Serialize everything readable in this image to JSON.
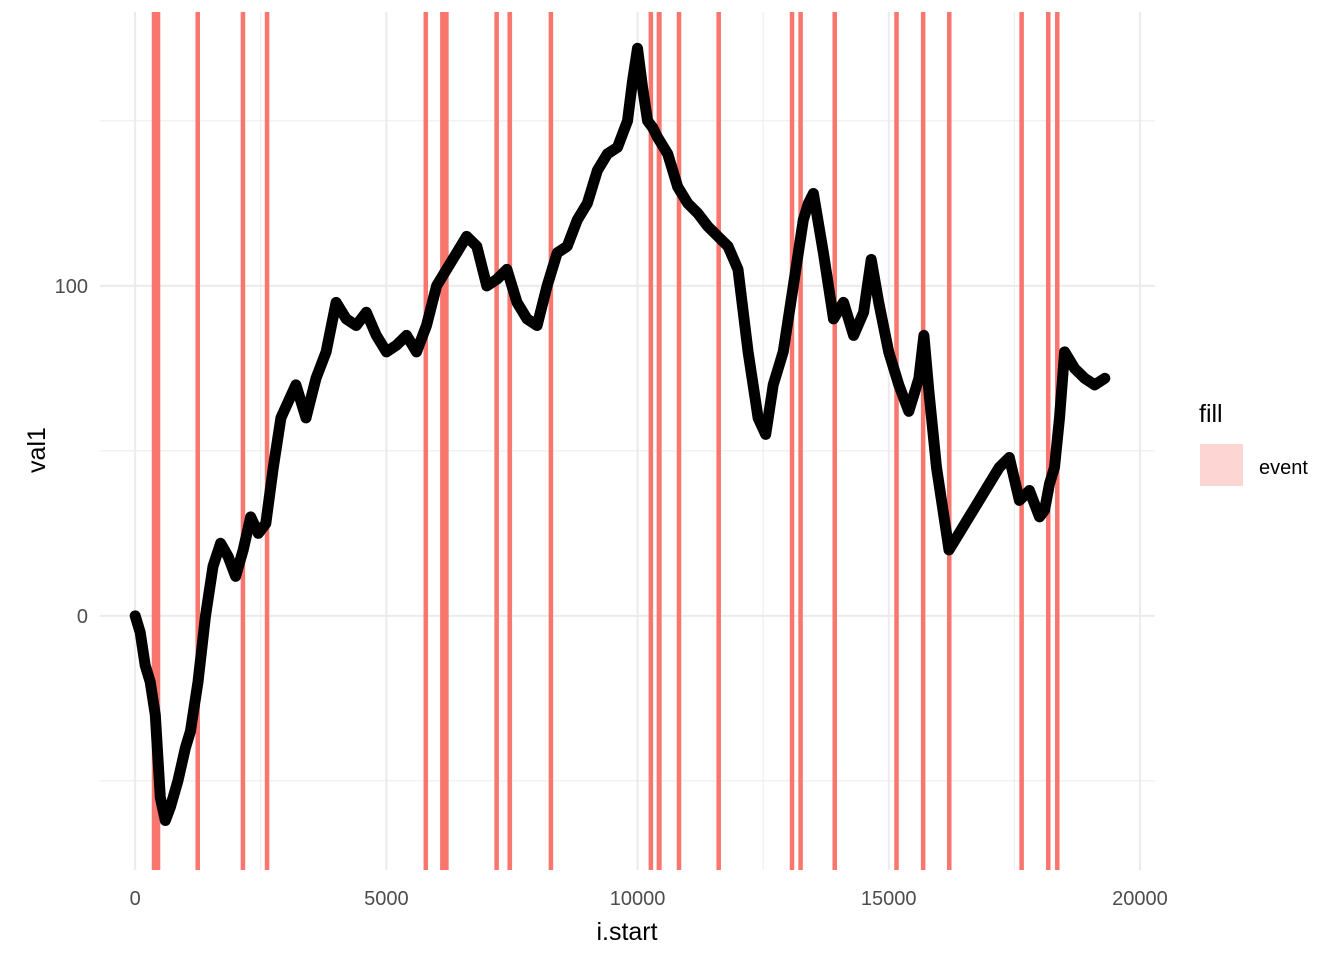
{
  "chart_data": {
    "type": "line",
    "title": "",
    "xlabel": "i.start",
    "ylabel": "val1",
    "xlim": [
      -700,
      20300
    ],
    "ylim": [
      -77,
      183
    ],
    "x_ticks": [
      0,
      5000,
      10000,
      15000,
      20000
    ],
    "x_tick_labels": [
      "0",
      "5000",
      "10000",
      "15000",
      "20000"
    ],
    "y_ticks": [
      0,
      100
    ],
    "y_tick_labels": [
      "0",
      "100"
    ],
    "grid": true,
    "legend": {
      "title": "fill",
      "position": "right",
      "entries": [
        {
          "label": "event",
          "color": "#F8766D"
        }
      ]
    },
    "colors": {
      "line": "#000000",
      "event": "#F8766D",
      "grid": "#ebebeb"
    },
    "events": [
      {
        "start": 330,
        "end": 500
      },
      {
        "start": 1200,
        "end": 1290
      },
      {
        "start": 2100,
        "end": 2190
      },
      {
        "start": 2580,
        "end": 2670
      },
      {
        "start": 5740,
        "end": 5830
      },
      {
        "start": 6070,
        "end": 6240
      },
      {
        "start": 7150,
        "end": 7240
      },
      {
        "start": 7410,
        "end": 7500
      },
      {
        "start": 8230,
        "end": 8320
      },
      {
        "start": 10220,
        "end": 10310
      },
      {
        "start": 10380,
        "end": 10480
      },
      {
        "start": 10780,
        "end": 10870
      },
      {
        "start": 11570,
        "end": 11660
      },
      {
        "start": 13030,
        "end": 13120
      },
      {
        "start": 13200,
        "end": 13290
      },
      {
        "start": 13880,
        "end": 13970
      },
      {
        "start": 15110,
        "end": 15200
      },
      {
        "start": 15640,
        "end": 15730
      },
      {
        "start": 16160,
        "end": 16250
      },
      {
        "start": 17600,
        "end": 17690
      },
      {
        "start": 18130,
        "end": 18220
      },
      {
        "start": 18310,
        "end": 18400
      }
    ],
    "series": [
      {
        "x": [
          0,
          100,
          200,
          300,
          400,
          500,
          600,
          700,
          850,
          1000,
          1100,
          1250,
          1400,
          1550,
          1700,
          1850,
          2000,
          2150,
          2300,
          2450,
          2600,
          2750,
          2900,
          3050,
          3200,
          3400,
          3600,
          3800,
          4000,
          4200,
          4400,
          4600,
          4800,
          5000,
          5200,
          5400,
          5600,
          5800,
          6000,
          6200,
          6400,
          6600,
          6800,
          7000,
          7200,
          7400,
          7600,
          7800,
          8000,
          8200,
          8400,
          8600,
          8800,
          9000,
          9200,
          9400,
          9600,
          9800,
          9900,
          10000,
          10100,
          10200,
          10300,
          10400,
          10600,
          10800,
          11000,
          11200,
          11400,
          11600,
          11800,
          12000,
          12200,
          12400,
          12550,
          12700,
          12900,
          13100,
          13300,
          13400,
          13500,
          13700,
          13900,
          14100,
          14300,
          14500,
          14650,
          14800,
          15000,
          15200,
          15400,
          15600,
          15700,
          15800,
          15950,
          16100,
          16200,
          16400,
          16600,
          16800,
          17000,
          17200,
          17400,
          17600,
          17800,
          18000,
          18100,
          18200,
          18300,
          18400,
          18500,
          18700,
          18900,
          19100,
          19300
        ],
        "y": [
          0,
          -5,
          -15,
          -20,
          -30,
          -55,
          -62,
          -58,
          -50,
          -40,
          -35,
          -20,
          0,
          15,
          22,
          18,
          12,
          20,
          30,
          25,
          28,
          45,
          60,
          65,
          70,
          60,
          72,
          80,
          95,
          90,
          88,
          92,
          85,
          80,
          82,
          85,
          80,
          88,
          100,
          105,
          110,
          115,
          112,
          100,
          102,
          105,
          95,
          90,
          88,
          100,
          110,
          112,
          120,
          125,
          135,
          140,
          142,
          150,
          162,
          172,
          160,
          150,
          148,
          145,
          140,
          130,
          125,
          122,
          118,
          115,
          112,
          105,
          80,
          60,
          55,
          70,
          80,
          100,
          120,
          125,
          128,
          110,
          90,
          95,
          85,
          92,
          108,
          95,
          80,
          70,
          62,
          72,
          85,
          68,
          45,
          30,
          20,
          25,
          30,
          35,
          40,
          45,
          48,
          35,
          38,
          30,
          32,
          40,
          45,
          60,
          80,
          75,
          72,
          70,
          72
        ]
      }
    ]
  }
}
